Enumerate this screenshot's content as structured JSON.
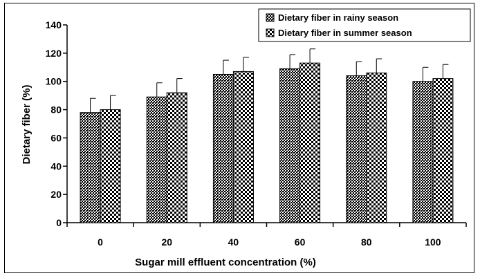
{
  "chart_data": {
    "type": "bar",
    "title": "",
    "xlabel": "Sugar mill effluent concentration (%)",
    "ylabel": "Dietary fiber (%)",
    "categories": [
      "0",
      "20",
      "40",
      "60",
      "80",
      "100"
    ],
    "ylim": [
      0,
      140
    ],
    "yticks": [
      "0",
      "20",
      "40",
      "60",
      "80",
      "100",
      "120",
      "140"
    ],
    "series": [
      {
        "name": "Dietary fiber in rainy season",
        "values": [
          78,
          89,
          105,
          109,
          104,
          100
        ],
        "errors": [
          10,
          10,
          10,
          10,
          10,
          10
        ]
      },
      {
        "name": "Dietary fiber in summer season",
        "values": [
          80,
          92,
          107,
          113,
          106,
          102
        ],
        "errors": [
          10,
          10,
          10,
          10,
          10,
          10
        ]
      }
    ],
    "legend_position": "top-right",
    "grid": false
  }
}
